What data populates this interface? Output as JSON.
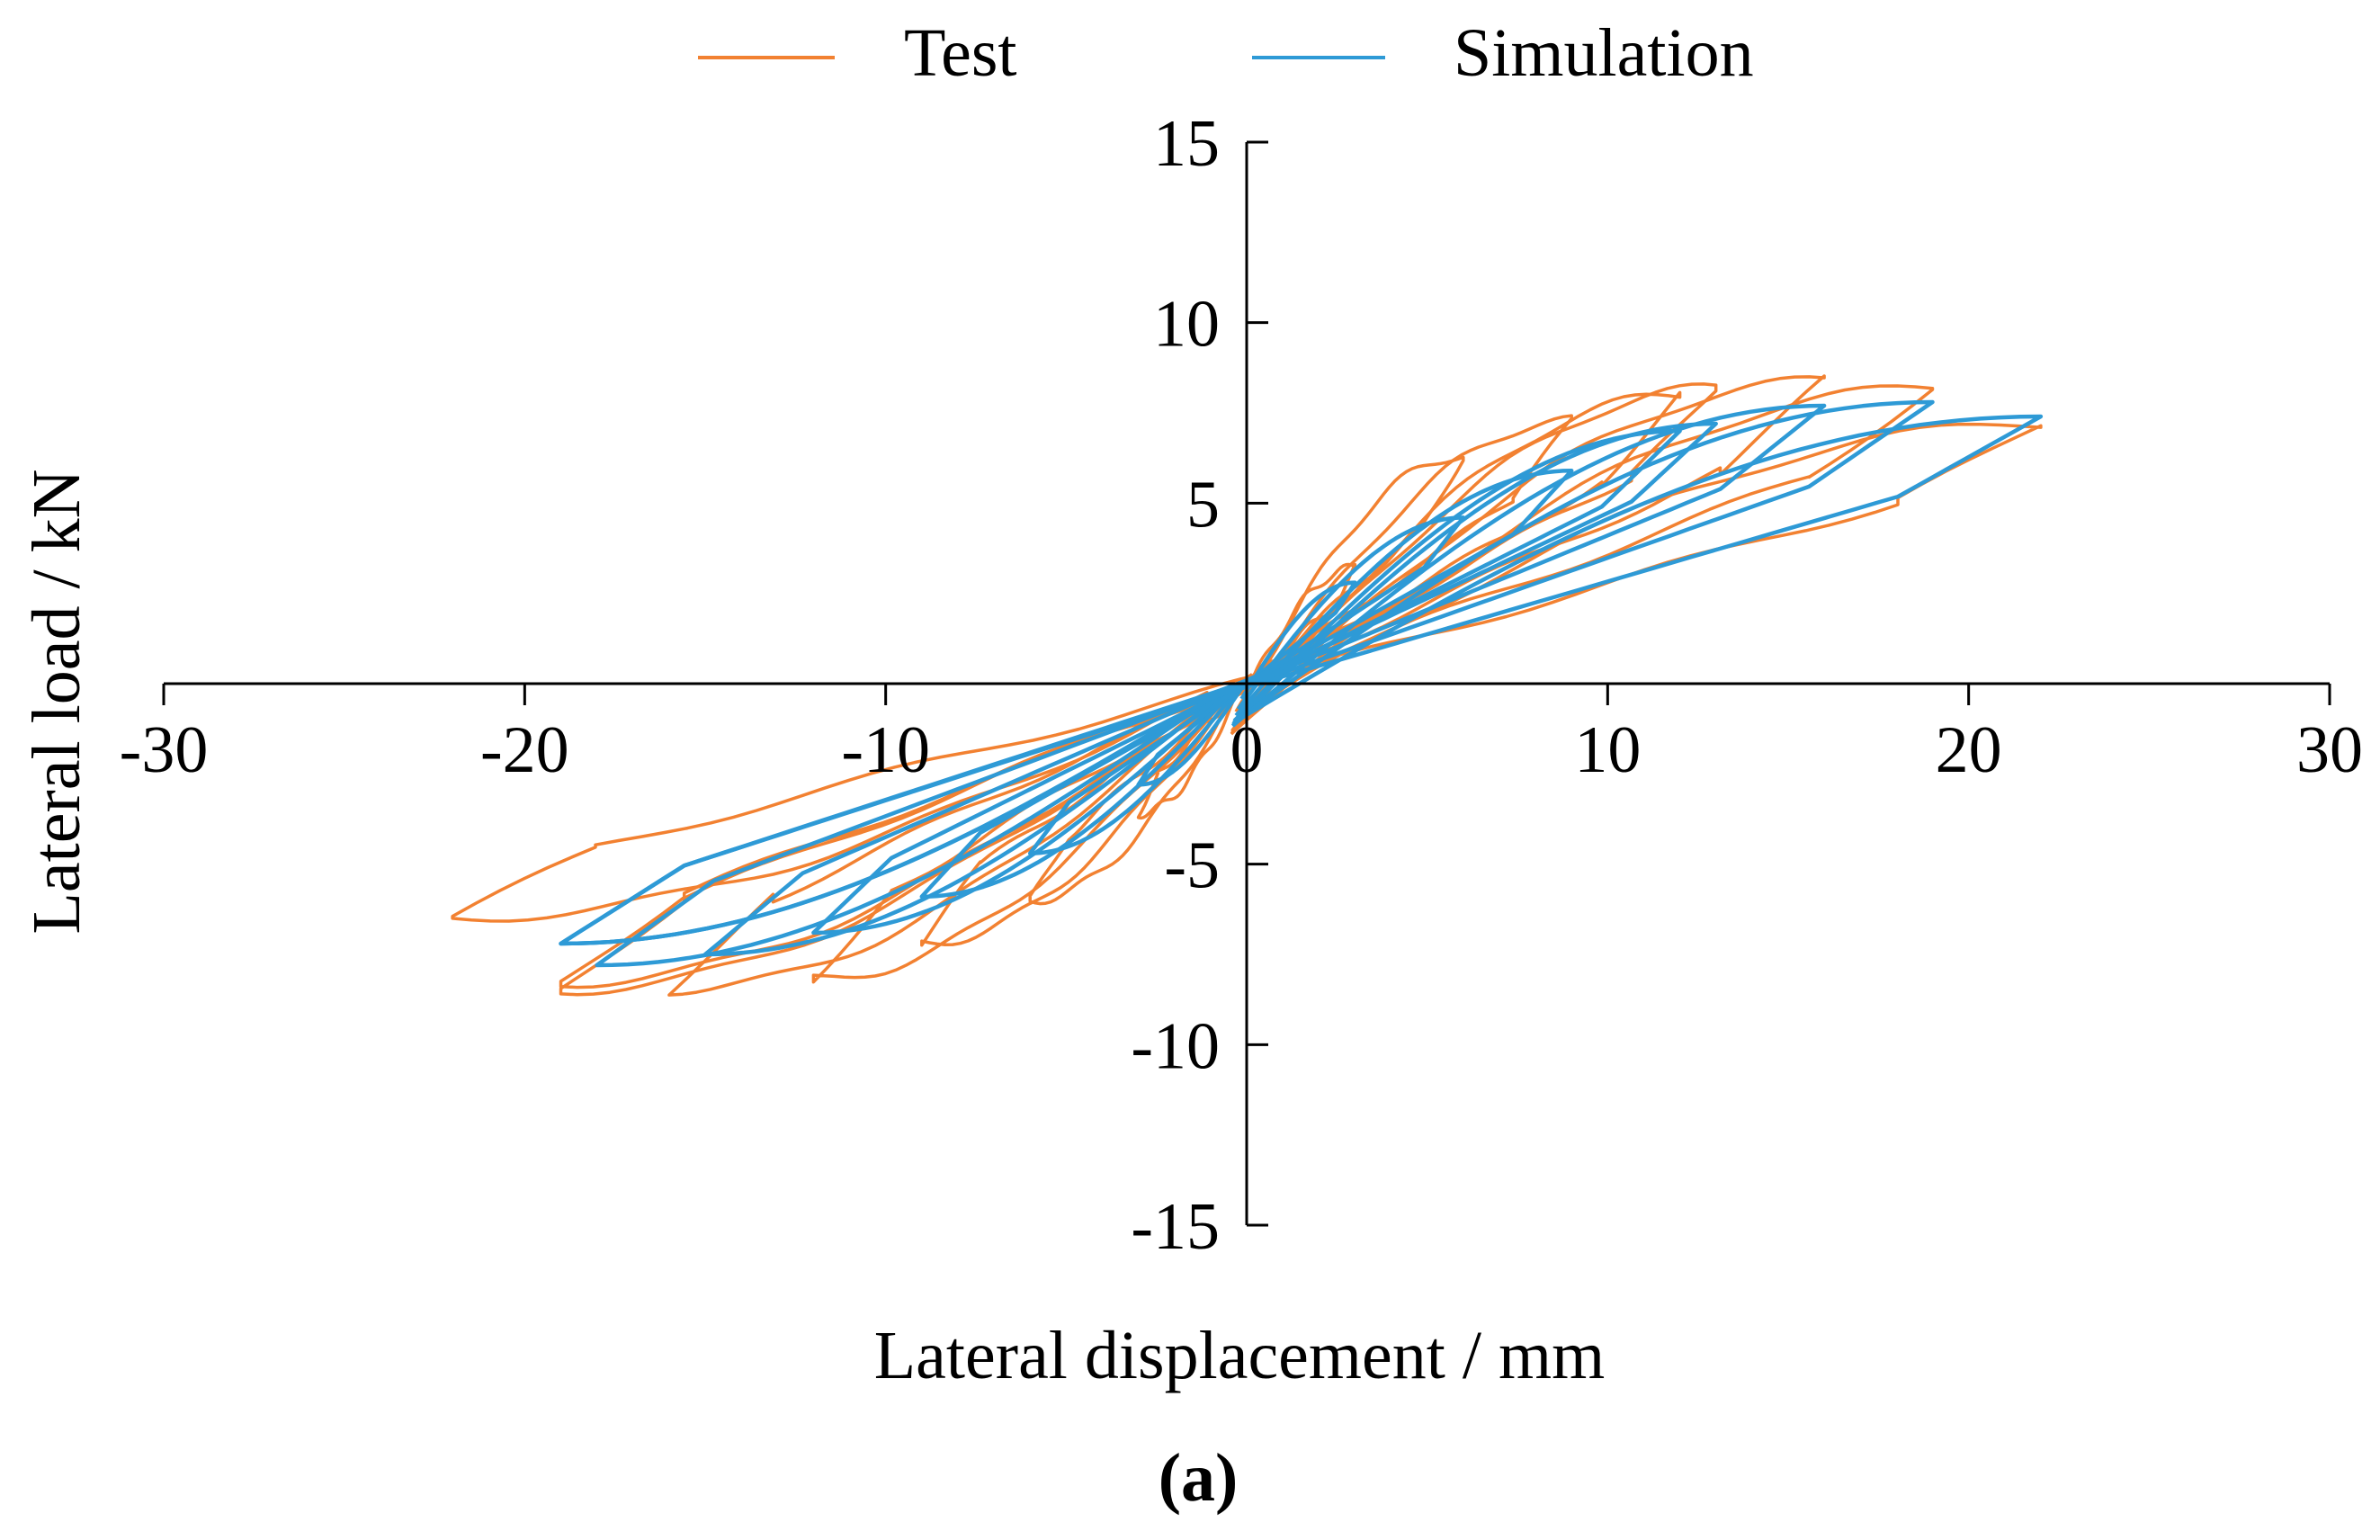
{
  "chart_data": {
    "type": "line",
    "caption": "(a)",
    "xlabel": "Lateral displacement / mm",
    "ylabel": "Lateral load / kN",
    "xlim": [
      -30,
      30
    ],
    "ylim": [
      -15,
      15
    ],
    "xticks": [
      -30,
      -20,
      -10,
      0,
      10,
      20,
      30
    ],
    "yticks": [
      15,
      10,
      5,
      -5,
      -10,
      -15
    ],
    "x_tick_labels": [
      "-30",
      "-20",
      "-10",
      "0",
      "10",
      "20",
      "30"
    ],
    "y_tick_labels": [
      "15",
      "10",
      "5",
      "-5",
      "-10",
      "-15"
    ],
    "grid": false,
    "legend_position": "top-center",
    "series": [
      {
        "name": "Test",
        "color": "#F28131",
        "cycles": [
          {
            "amp_pos": 3,
            "amp_neg": -3,
            "peak_pos": 3.2,
            "peak_neg": -3.6
          },
          {
            "amp_pos": 6,
            "amp_neg": -6,
            "peak_pos": 6.3,
            "peak_neg": -6.0
          },
          {
            "amp_pos": 9,
            "amp_neg": -9,
            "peak_pos": 7.3,
            "peak_neg": -7.2
          },
          {
            "amp_pos": 12,
            "amp_neg": -12,
            "peak_pos": 8.0,
            "peak_neg": -8.2
          },
          {
            "amp_pos": 13,
            "amp_neg": -16,
            "peak_pos": 8.2,
            "peak_neg": -8.5
          },
          {
            "amp_pos": 16,
            "amp_neg": -19,
            "peak_pos": 8.4,
            "peak_neg": -8.5
          },
          {
            "amp_pos": 19,
            "amp_neg": -19,
            "peak_pos": 8.2,
            "peak_neg": -8.3
          },
          {
            "amp_pos": 22,
            "amp_neg": -22,
            "peak_pos": 7.2,
            "peak_neg": -6.5
          }
        ]
      },
      {
        "name": "Simulation",
        "color": "#2E9AD6",
        "cycles": [
          {
            "amp_pos": 3,
            "amp_neg": -3,
            "peak_pos": 2.8,
            "peak_neg": -2.8
          },
          {
            "amp_pos": 6,
            "amp_neg": -6,
            "peak_pos": 4.6,
            "peak_neg": -4.7
          },
          {
            "amp_pos": 9,
            "amp_neg": -9,
            "peak_pos": 5.9,
            "peak_neg": -5.9
          },
          {
            "amp_pos": 12,
            "amp_neg": -12,
            "peak_pos": 7.0,
            "peak_neg": -6.9
          },
          {
            "amp_pos": 13,
            "amp_neg": -15,
            "peak_pos": 7.2,
            "peak_neg": -7.5
          },
          {
            "amp_pos": 16,
            "amp_neg": -18,
            "peak_pos": 7.7,
            "peak_neg": -7.8
          },
          {
            "amp_pos": 19,
            "amp_neg": -19,
            "peak_pos": 7.8,
            "peak_neg": -7.2
          },
          {
            "amp_pos": 22,
            "amp_neg": -19,
            "peak_pos": 7.4,
            "peak_neg": -7.2
          }
        ]
      }
    ]
  }
}
